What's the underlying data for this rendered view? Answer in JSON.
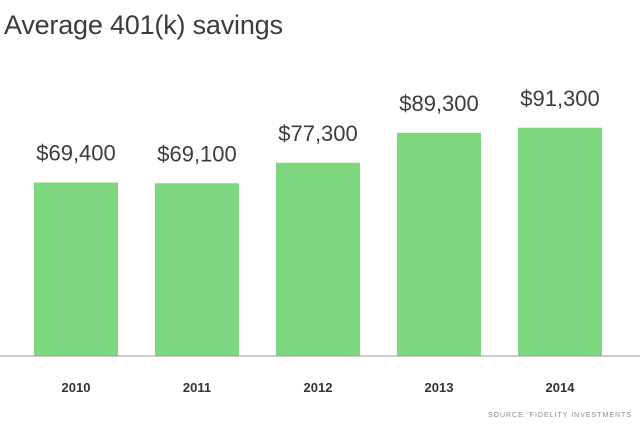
{
  "chart_data": {
    "type": "bar",
    "title": "Average 401(k) savings",
    "categories": [
      "2010",
      "2011",
      "2012",
      "2013",
      "2014"
    ],
    "values": [
      69400,
      69100,
      77300,
      89300,
      91300
    ],
    "value_labels": [
      "$69,400",
      "$69,100",
      "$77,300",
      "$89,300",
      "$91,300"
    ],
    "xlabel": "",
    "ylabel": "",
    "ylim": [
      0,
      100000
    ],
    "grid": false,
    "bar_color": "#7ed67e",
    "axis_color": "#9a9a9a",
    "source": "SOURCE: FIDELITY INVESTMENTS"
  }
}
